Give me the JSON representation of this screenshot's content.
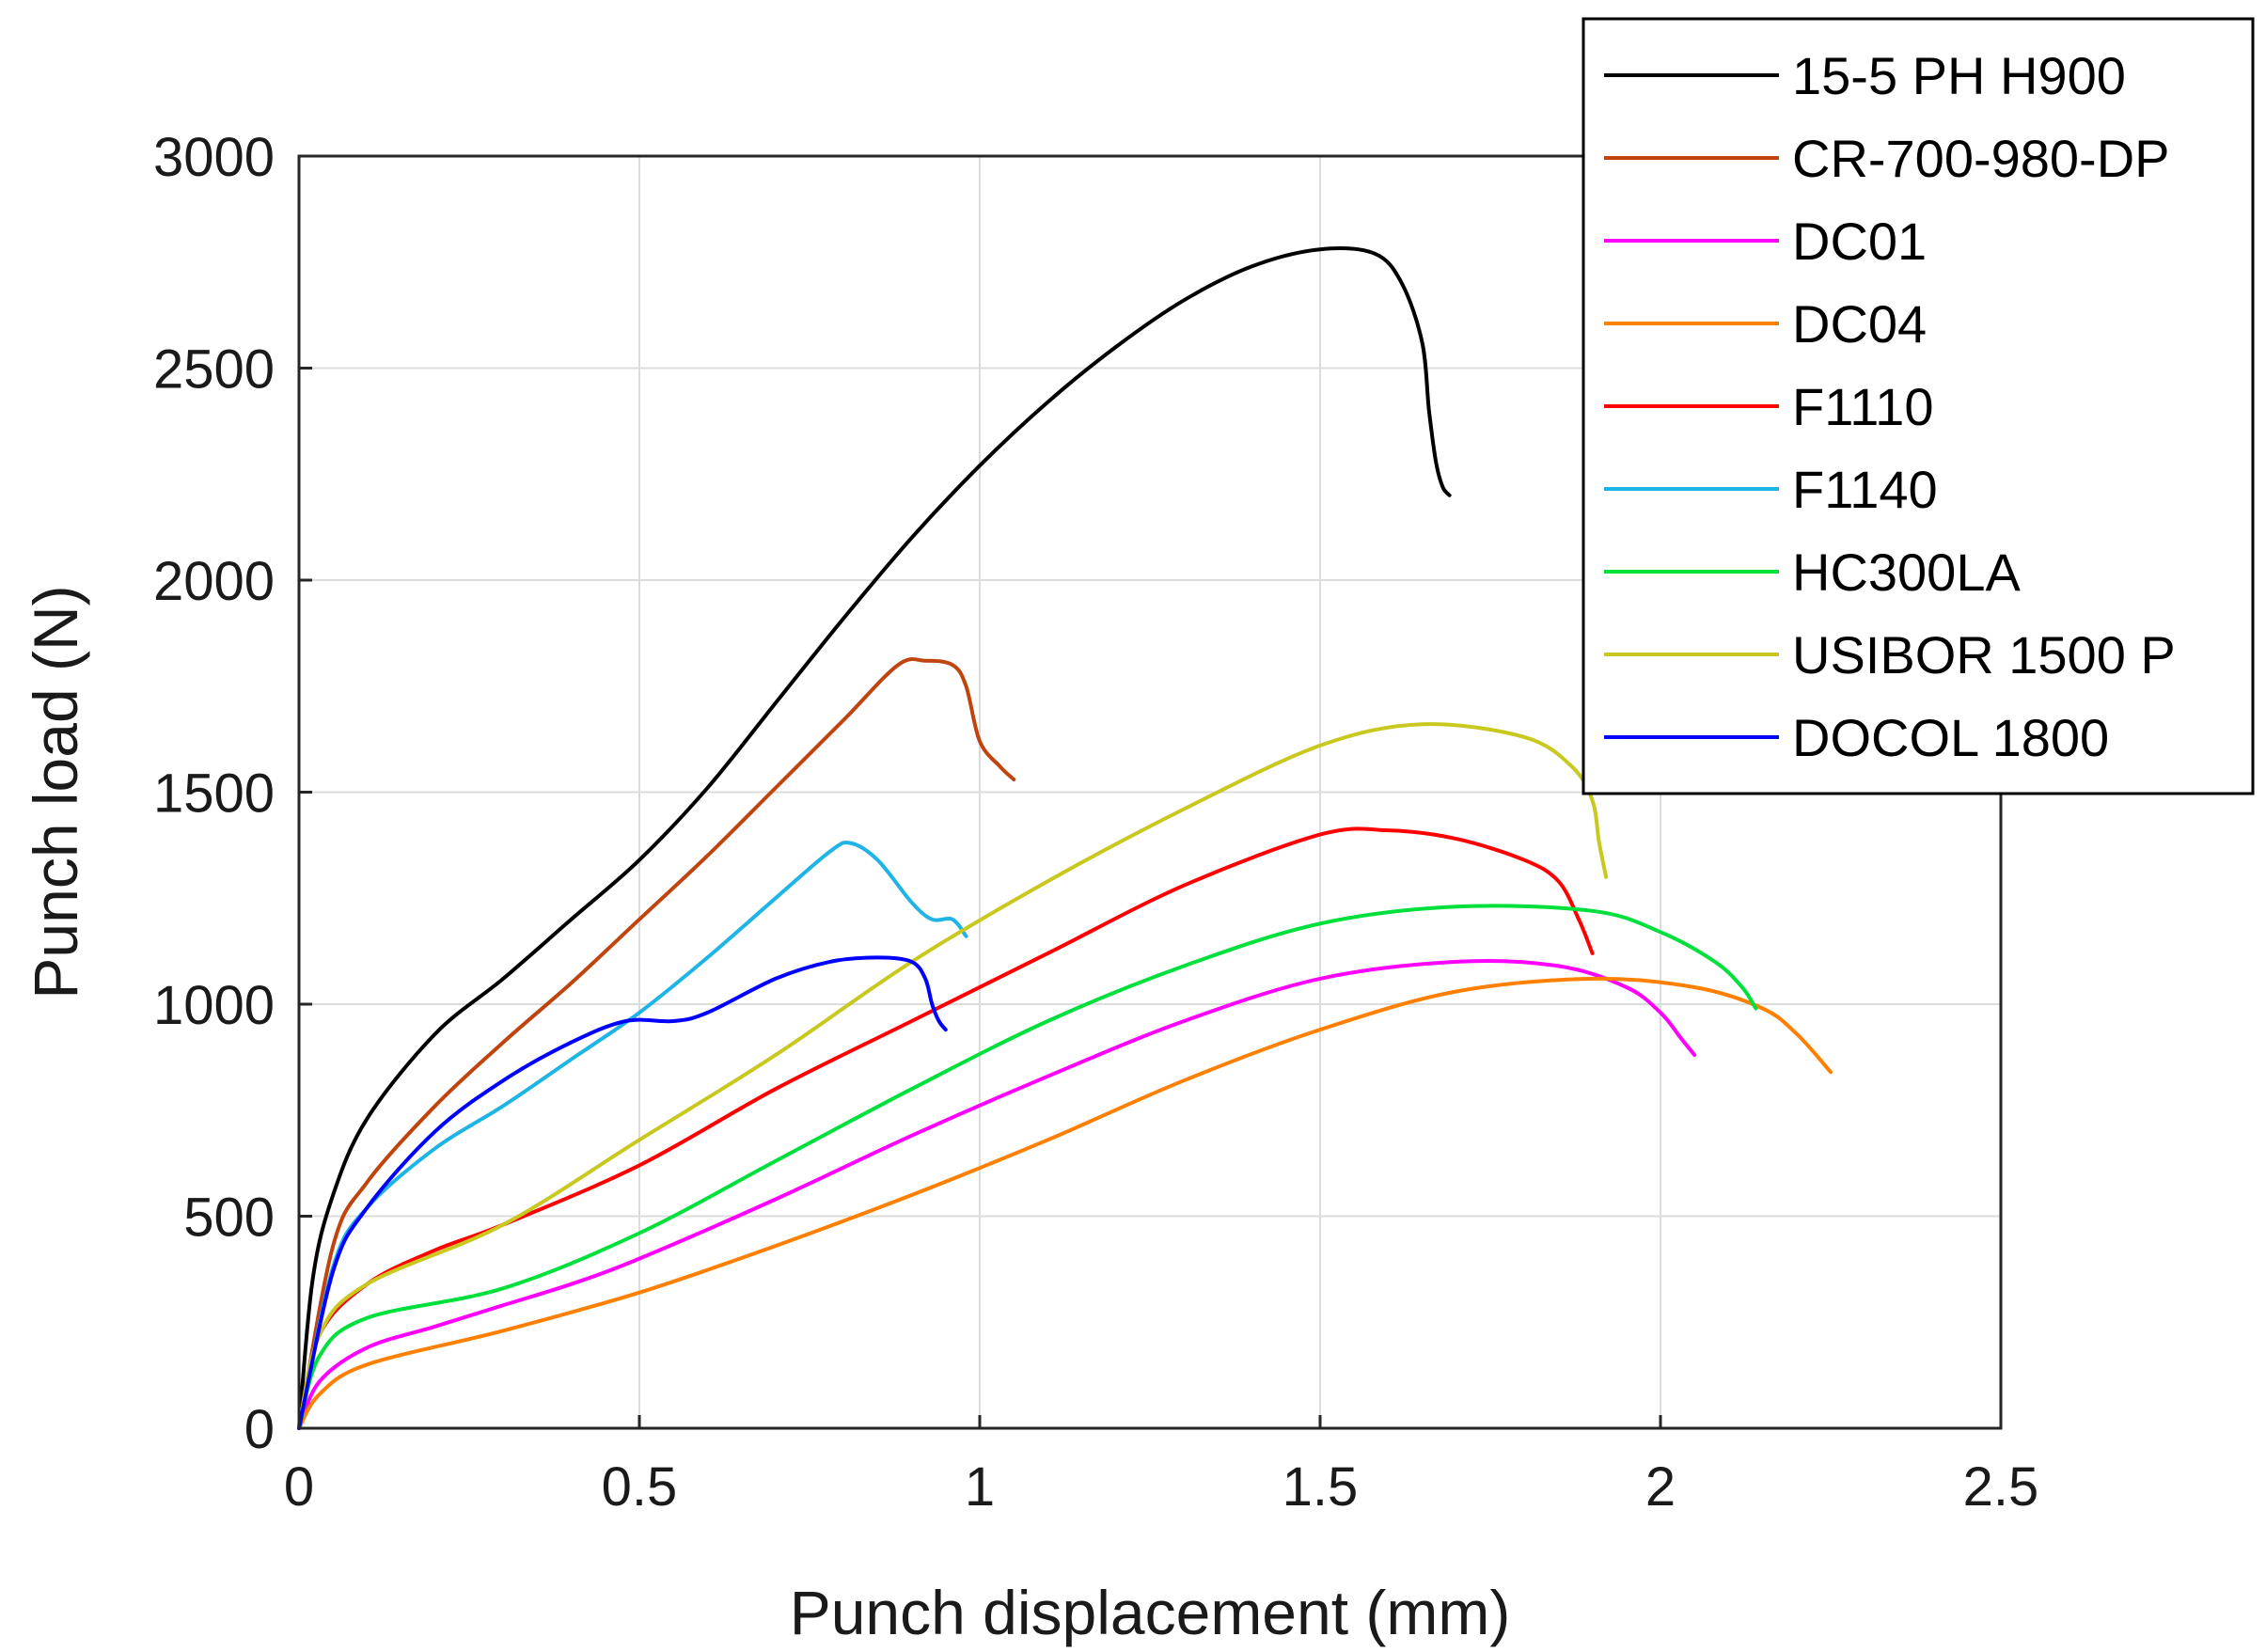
{
  "chart_data": {
    "type": "line",
    "title": "",
    "xlabel": "Punch displacement (mm)",
    "ylabel": "Punch load (N)",
    "xlim": [
      0,
      2.5
    ],
    "ylim": [
      0,
      3000
    ],
    "xticks": [
      0,
      0.5,
      1,
      1.5,
      2,
      2.5
    ],
    "xtick_labels": [
      "0",
      "0.5",
      "1",
      "1.5",
      "2",
      "2.5"
    ],
    "yticks": [
      0,
      500,
      1000,
      1500,
      2000,
      2500,
      3000
    ],
    "ytick_labels": [
      "0",
      "500",
      "1000",
      "1500",
      "2000",
      "2500",
      "3000"
    ],
    "grid": true,
    "legend_position": "top-right",
    "series": [
      {
        "name": "15-5 PH H900",
        "color": "#000000",
        "x": [
          0,
          0.02,
          0.05,
          0.1,
          0.2,
          0.3,
          0.4,
          0.5,
          0.6,
          0.7,
          0.8,
          0.9,
          1.0,
          1.1,
          1.2,
          1.3,
          1.4,
          1.5,
          1.58,
          1.62,
          1.65,
          1.66,
          1.67,
          1.68,
          1.69
        ],
        "y": [
          0,
          350,
          550,
          730,
          930,
          1060,
          1200,
          1340,
          1510,
          1710,
          1910,
          2100,
          2270,
          2420,
          2550,
          2660,
          2740,
          2780,
          2770,
          2700,
          2560,
          2400,
          2280,
          2220,
          2200
        ]
      },
      {
        "name": "CR-700-980-DP",
        "color": "#C0440E",
        "x": [
          0,
          0.05,
          0.1,
          0.2,
          0.3,
          0.4,
          0.5,
          0.6,
          0.7,
          0.8,
          0.88,
          0.92,
          0.96,
          0.98,
          1.0,
          1.03,
          1.05
        ],
        "y": [
          0,
          430,
          580,
          760,
          910,
          1050,
          1200,
          1350,
          1510,
          1670,
          1800,
          1810,
          1800,
          1750,
          1620,
          1560,
          1530
        ]
      },
      {
        "name": "DC01",
        "color": "#FF00FF",
        "x": [
          0,
          0.03,
          0.1,
          0.2,
          0.3,
          0.4,
          0.5,
          0.7,
          0.9,
          1.1,
          1.3,
          1.5,
          1.7,
          1.85,
          1.95,
          2.0,
          2.03,
          2.05
        ],
        "y": [
          0,
          110,
          190,
          240,
          290,
          340,
          400,
          540,
          690,
          830,
          960,
          1060,
          1100,
          1090,
          1040,
          980,
          920,
          880
        ]
      },
      {
        "name": "DC04",
        "color": "#FF8000",
        "x": [
          0,
          0.03,
          0.1,
          0.3,
          0.5,
          0.7,
          0.9,
          1.1,
          1.3,
          1.5,
          1.7,
          1.9,
          2.05,
          2.15,
          2.2,
          2.25
        ],
        "y": [
          0,
          80,
          150,
          230,
          320,
          430,
          550,
          680,
          820,
          940,
          1030,
          1060,
          1040,
          990,
          930,
          840
        ]
      },
      {
        "name": "F1110",
        "color": "#FF0000",
        "x": [
          0,
          0.03,
          0.1,
          0.2,
          0.3,
          0.5,
          0.7,
          0.9,
          1.1,
          1.3,
          1.5,
          1.6,
          1.7,
          1.8,
          1.85,
          1.88,
          1.9
        ],
        "y": [
          0,
          220,
          340,
          420,
          480,
          620,
          800,
          960,
          1120,
          1280,
          1400,
          1410,
          1390,
          1340,
          1290,
          1200,
          1120
        ]
      },
      {
        "name": "F1140",
        "color": "#1EB4E6",
        "x": [
          0,
          0.05,
          0.1,
          0.2,
          0.3,
          0.4,
          0.5,
          0.6,
          0.7,
          0.78,
          0.81,
          0.85,
          0.9,
          0.93,
          0.96,
          0.98
        ],
        "y": [
          0,
          380,
          520,
          660,
          760,
          870,
          980,
          1110,
          1250,
          1360,
          1380,
          1340,
          1240,
          1200,
          1200,
          1160
        ]
      },
      {
        "name": "HC300LA",
        "color": "#00E03C",
        "x": [
          0,
          0.03,
          0.1,
          0.3,
          0.5,
          0.7,
          0.9,
          1.1,
          1.3,
          1.5,
          1.7,
          1.9,
          2.0,
          2.08,
          2.12,
          2.14
        ],
        "y": [
          0,
          170,
          260,
          330,
          460,
          630,
          800,
          960,
          1090,
          1190,
          1230,
          1220,
          1170,
          1100,
          1040,
          990
        ]
      },
      {
        "name": "USIBOR 1500 P",
        "color": "#C8C81E",
        "x": [
          0,
          0.03,
          0.1,
          0.3,
          0.5,
          0.7,
          0.9,
          1.1,
          1.3,
          1.5,
          1.65,
          1.8,
          1.87,
          1.9,
          1.91,
          1.92
        ],
        "y": [
          0,
          220,
          340,
          480,
          680,
          880,
          1100,
          1290,
          1460,
          1610,
          1660,
          1630,
          1560,
          1480,
          1380,
          1300
        ]
      },
      {
        "name": "DOCOL 1800",
        "color": "#0000FF",
        "x": [
          0,
          0.05,
          0.1,
          0.2,
          0.3,
          0.4,
          0.48,
          0.55,
          0.6,
          0.7,
          0.78,
          0.85,
          0.9,
          0.92,
          0.93,
          0.94,
          0.95
        ],
        "y": [
          0,
          370,
          520,
          700,
          820,
          910,
          960,
          960,
          980,
          1060,
          1100,
          1110,
          1100,
          1060,
          1000,
          960,
          940
        ]
      }
    ]
  }
}
